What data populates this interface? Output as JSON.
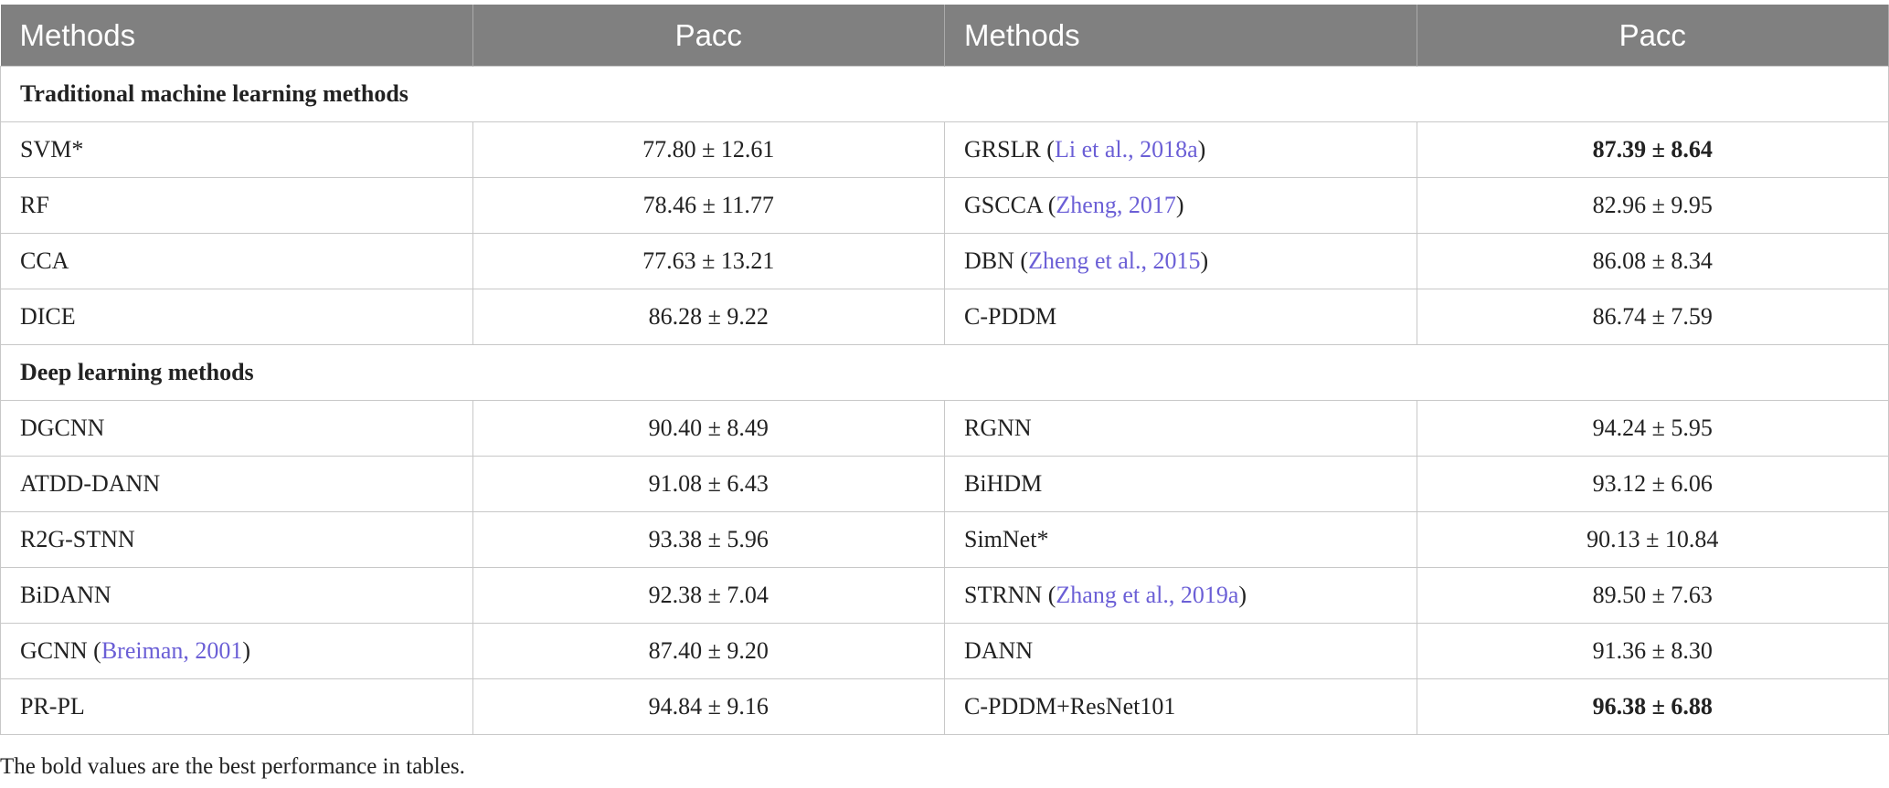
{
  "table": {
    "header": [
      "Methods",
      "Pacc",
      "Methods",
      "Pacc"
    ],
    "sections": [
      {
        "title": "Traditional machine learning methods",
        "rows": [
          [
            "SVM*",
            "77.80 ± 12.61",
            {
              "text": "GRSLR (",
              "cite": "Li et al., 2018a",
              "tail": ")"
            },
            {
              "text": "87.39 ± 8.64",
              "bold": true
            }
          ],
          [
            "RF",
            "78.46 ± 11.77",
            {
              "text": "GSCCA (",
              "cite": "Zheng, 2017",
              "tail": ")"
            },
            "82.96 ± 9.95"
          ],
          [
            "CCA",
            "77.63 ± 13.21",
            {
              "text": "DBN (",
              "cite": "Zheng et al., 2015",
              "tail": ")"
            },
            "86.08 ± 8.34"
          ],
          [
            "DICE",
            "86.28 ± 9.22",
            "C-PDDM",
            "86.74 ± 7.59"
          ]
        ]
      },
      {
        "title": "Deep learning methods",
        "rows": [
          [
            "DGCNN",
            "90.40 ± 8.49",
            "RGNN",
            "94.24 ± 5.95"
          ],
          [
            "ATDD-DANN",
            "91.08 ± 6.43",
            "BiHDM",
            "93.12 ± 6.06"
          ],
          [
            "R2G-STNN",
            "93.38 ± 5.96",
            "SimNet*",
            "90.13 ± 10.84"
          ],
          [
            "BiDANN",
            "92.38 ± 7.04",
            {
              "text": "STRNN (",
              "cite": "Zhang et al., 2019a",
              "tail": ")"
            },
            "89.50 ± 7.63"
          ],
          [
            {
              "text": "GCNN (",
              "cite": "Breiman, 2001",
              "tail": ")"
            },
            "87.40 ± 9.20",
            "DANN",
            "91.36 ± 8.30"
          ],
          [
            "PR-PL",
            "94.84 ± 9.16",
            "C-PDDM+ResNet101",
            {
              "text": "96.38 ± 6.88",
              "bold": true
            }
          ]
        ]
      }
    ],
    "footnote": "The bold values are the best performance in tables."
  }
}
